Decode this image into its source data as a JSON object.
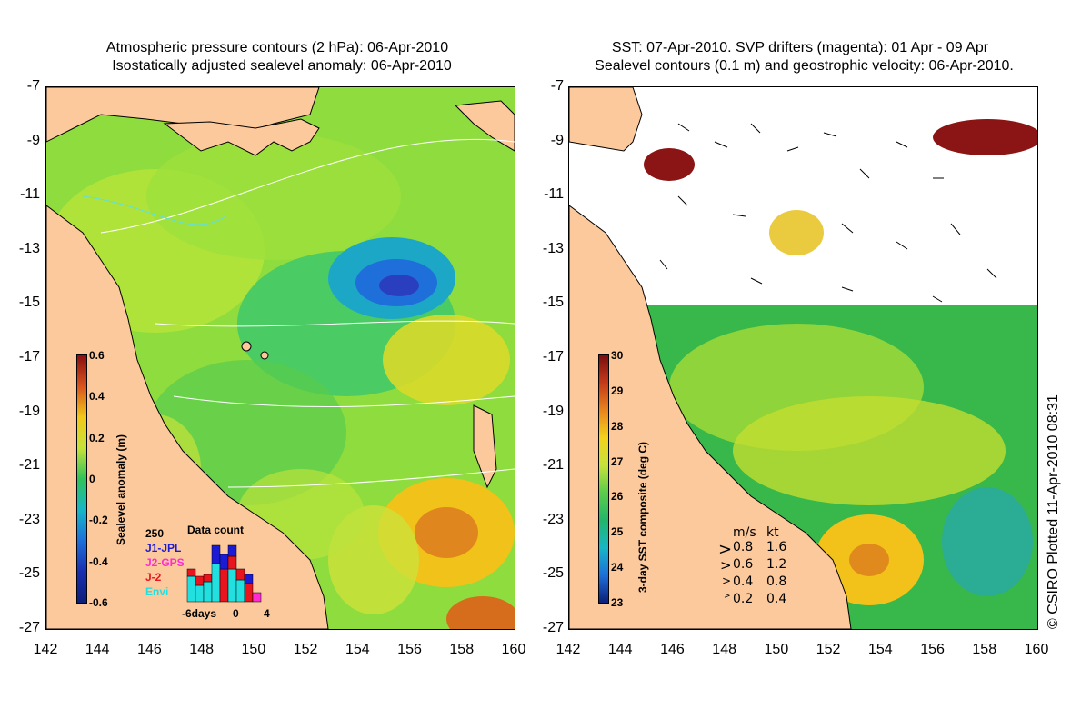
{
  "left_panel": {
    "title_line1": "Atmospheric pressure contours (2 hPa): 06-Apr-2010",
    "title_line2": "Isostatically adjusted sealevel anomaly: 06-Apr-2010",
    "colorbar": {
      "title": "Sealevel anomaly (m)",
      "ticks": [
        "0.6",
        "0.4",
        "0.2",
        "0",
        "-0.2",
        "-0.4",
        "-0.6"
      ]
    },
    "data_count": {
      "title": "Data count",
      "max_label": "250",
      "missions": [
        {
          "name": "J1-JPL",
          "color": "#1b1bd6"
        },
        {
          "name": "J2-GPS",
          "color": "#ff2bd4"
        },
        {
          "name": "J-2",
          "color": "#e8141e"
        },
        {
          "name": "Envi",
          "color": "#22e0e0"
        }
      ],
      "axis_labels": [
        "-6days",
        "0",
        "4"
      ]
    }
  },
  "right_panel": {
    "title_line1": "SST: 07-Apr-2010. SVP drifters (magenta): 01 Apr - 09 Apr",
    "title_line2": "Sealevel contours (0.1 m) and geostrophic velocity: 06-Apr-2010.",
    "colorbar": {
      "title": "3-day SST composite (deg C)",
      "ticks": [
        "30",
        "29",
        "28",
        "27",
        "26",
        "25",
        "24",
        "23"
      ]
    },
    "velocity_legend": {
      "header_ms": "m/s",
      "header_kt": "kt",
      "rows": [
        {
          "ms": "0.8",
          "kt": "1.6"
        },
        {
          "ms": "0.6",
          "kt": "1.2"
        },
        {
          "ms": "0.4",
          "kt": "0.8"
        },
        {
          "ms": "0.2",
          "kt": "0.4"
        }
      ]
    }
  },
  "axes": {
    "lat_ticks": [
      "-7",
      "-9",
      "-11",
      "-13",
      "-15",
      "-17",
      "-19",
      "-21",
      "-23",
      "-25",
      "-27"
    ],
    "lon_ticks": [
      "142",
      "144",
      "146",
      "148",
      "150",
      "152",
      "154",
      "156",
      "158",
      "160"
    ]
  },
  "copyright": "© CSIRO Plotted 11-Apr-2010 08:31",
  "colors": {
    "land": "#fcc99c",
    "sla_mid": "#7fd84a",
    "sla_low": "#1e6fd9",
    "sla_high": "#e07a1e",
    "sst_warm": "#f2d21c",
    "sst_mid": "#38b84a"
  }
}
